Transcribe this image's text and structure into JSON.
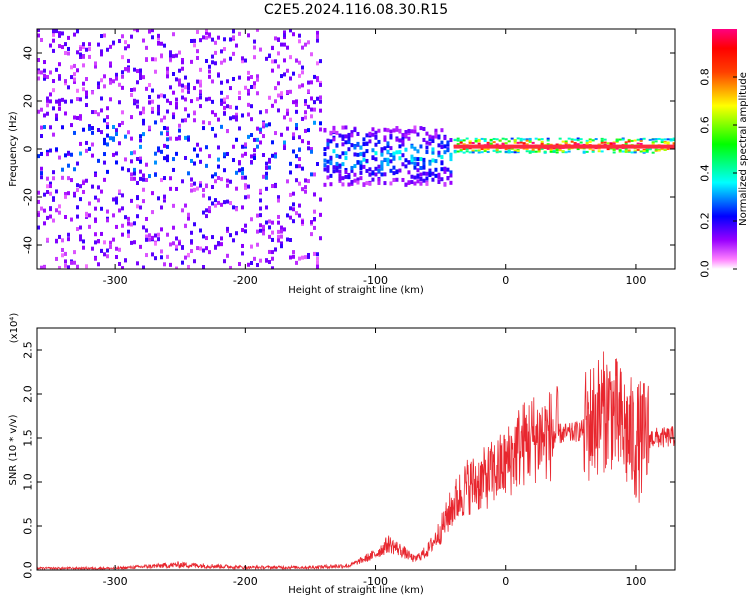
{
  "title": "C2E5.2024.116.08.30.R15",
  "chart_data": [
    {
      "type": "heatmap",
      "xlabel": "Height of straight line (km)",
      "ylabel": "Frequency (Hz)",
      "xlim": [
        -360,
        130
      ],
      "ylim": [
        -50,
        50
      ],
      "xticks": [
        "-300",
        "-200",
        "-100",
        "0",
        "100"
      ],
      "xtick_values": [
        -300,
        -200,
        -100,
        0,
        100
      ],
      "yticks": [
        "-40",
        "-20",
        "0",
        "20",
        "40"
      ],
      "ytick_values": [
        -40,
        -20,
        0,
        20,
        40
      ],
      "colorbar": {
        "label": "Normalized spectral amplitude",
        "range": [
          0,
          1
        ],
        "ticks": [
          "0.0",
          "0.2",
          "0.4",
          "0.6",
          "0.8"
        ],
        "tick_values": [
          0.0,
          0.2,
          0.4,
          0.6,
          0.8
        ],
        "colormap": [
          "#ff00ff",
          "#0000ff",
          "#00ffff",
          "#00ff00",
          "#ffff00",
          "#ff0000",
          "#ff0080"
        ]
      },
      "grid": false,
      "bands": [
        {
          "x": [
            -360,
            -140
          ],
          "f_center": 0,
          "f_halfwidth": 50,
          "amplitude": 0.12
        },
        {
          "x": [
            -140,
            -40
          ],
          "f_center": -3,
          "f_halfwidth": 12,
          "amplitude": 0.25
        },
        {
          "x": [
            -40,
            130
          ],
          "f_center": 1,
          "f_halfwidth": 3,
          "amplitude": 0.85
        }
      ]
    },
    {
      "type": "line",
      "xlabel": "Height of straight line (km)",
      "ylabel": "SNR (10 * v/v)",
      "y_multiplier": "(x10⁴)",
      "xlim": [
        -360,
        130
      ],
      "ylim": [
        0,
        2.75
      ],
      "xticks": [
        "-300",
        "-200",
        "-100",
        "0",
        "100"
      ],
      "xtick_values": [
        -300,
        -200,
        -100,
        0,
        100
      ],
      "yticks": [
        "0.0",
        "0.5",
        "1.0",
        "1.5",
        "2.0",
        "2.5"
      ],
      "ytick_values": [
        0.0,
        0.5,
        1.0,
        1.5,
        2.0,
        2.5
      ],
      "grid": false,
      "series": [
        {
          "color": "#e8262e",
          "x": [
            -360,
            -300,
            -250,
            -200,
            -150,
            -120,
            -100,
            -90,
            -80,
            -70,
            -60,
            -50,
            -40,
            -30,
            -20,
            -10,
            0,
            10,
            20,
            30,
            40,
            50,
            60,
            70,
            80,
            90,
            100,
            110,
            120,
            130
          ],
          "y": [
            0.02,
            0.02,
            0.06,
            0.03,
            0.03,
            0.05,
            0.18,
            0.3,
            0.22,
            0.12,
            0.22,
            0.45,
            0.75,
            0.95,
            1.0,
            1.1,
            1.2,
            1.4,
            1.5,
            1.52,
            1.55,
            1.55,
            1.6,
            1.75,
            1.85,
            1.6,
            1.45,
            1.5,
            1.5,
            1.52
          ]
        }
      ]
    }
  ]
}
